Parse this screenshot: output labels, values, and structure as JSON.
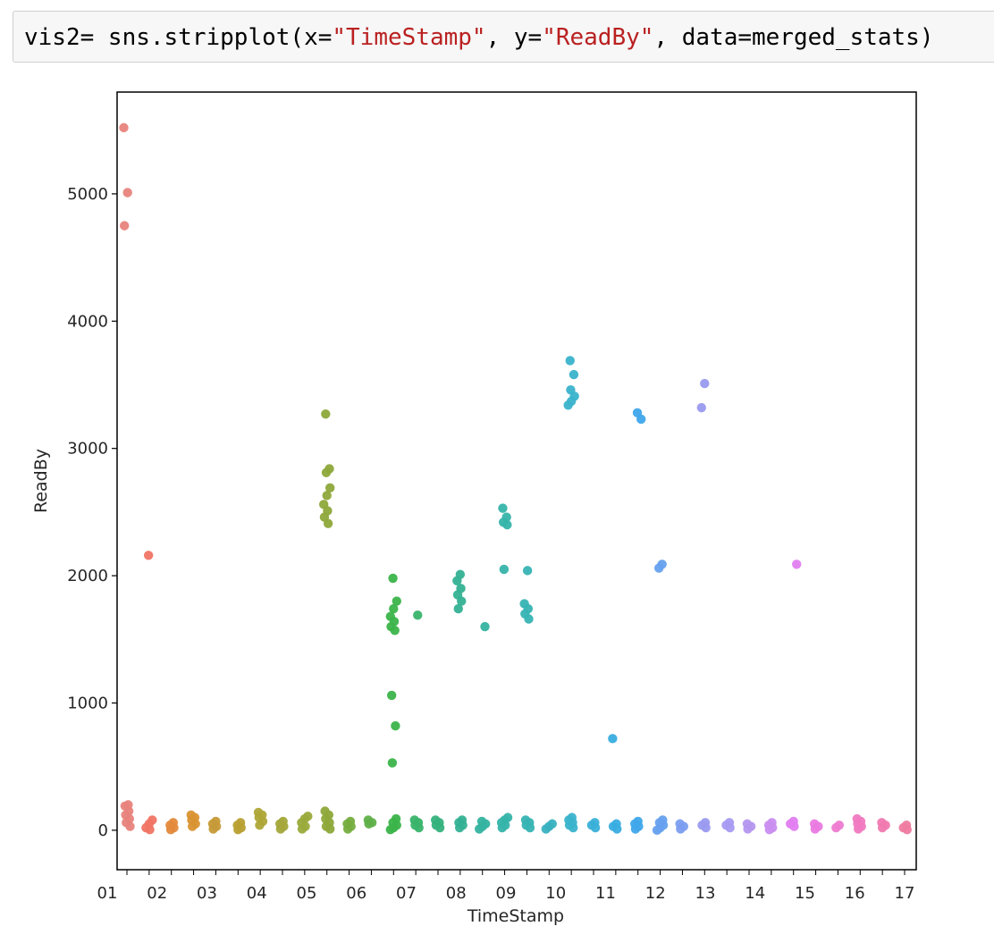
{
  "code_cell": {
    "parts": [
      {
        "text": "vis2= sns.stripplot(x=",
        "kind": "plain"
      },
      {
        "text": "\"TimeStamp\"",
        "kind": "string"
      },
      {
        "text": ", y=",
        "kind": "plain"
      },
      {
        "text": "\"ReadBy\"",
        "kind": "string"
      },
      {
        "text": ", data=merged_stats)",
        "kind": "plain"
      }
    ]
  },
  "chart_data": {
    "type": "scatter",
    "xlabel": "TimeStamp",
    "ylabel": "ReadBy",
    "ylim": [
      -310,
      5800
    ],
    "yticks": [
      0,
      1000,
      2000,
      3000,
      4000,
      5000
    ],
    "xtick_labels": [
      "01",
      "02",
      "03",
      "04",
      "05",
      "06",
      "07",
      "08",
      "09",
      "10",
      "11",
      "12",
      "13",
      "14",
      "15",
      "16",
      "17"
    ],
    "grid": false,
    "legend": "none",
    "series": [
      {
        "color": "#e8837c",
        "points": [
          5520,
          5010,
          4750,
          200,
          190,
          150,
          120,
          90,
          60,
          30
        ]
      },
      {
        "color": "#f07464",
        "points": [
          2160,
          80,
          50,
          20,
          5
        ]
      },
      {
        "color": "#e38a3c",
        "points": [
          60,
          40,
          20,
          5
        ]
      },
      {
        "color": "#d99332",
        "points": [
          120,
          100,
          80,
          50,
          30
        ]
      },
      {
        "color": "#c69a38",
        "points": [
          70,
          50,
          30,
          10
        ]
      },
      {
        "color": "#b8a033",
        "points": [
          60,
          40,
          20,
          5
        ]
      },
      {
        "color": "#aea637",
        "points": [
          140,
          120,
          100,
          70,
          40
        ]
      },
      {
        "color": "#a4a73b",
        "points": [
          70,
          50,
          30,
          10
        ]
      },
      {
        "color": "#9aab3c",
        "points": [
          110,
          90,
          60,
          30,
          10
        ]
      },
      {
        "color": "#8ea83a",
        "points": [
          3270,
          2840,
          2810,
          2690,
          2630,
          2560,
          2510,
          2460,
          2410,
          150,
          120,
          90,
          60,
          30,
          10
        ]
      },
      {
        "color": "#76ad3f",
        "points": [
          70,
          50,
          30,
          10
        ]
      },
      {
        "color": "#5fb048",
        "points": [
          80,
          60,
          50
        ]
      },
      {
        "color": "#3bb44a",
        "points": [
          1980,
          1800,
          1740,
          1680,
          1640,
          1600,
          1570,
          1060,
          820,
          530,
          90,
          60,
          40,
          20,
          5
        ]
      },
      {
        "color": "#39b46a",
        "points": [
          1690,
          80,
          60,
          40,
          20
        ]
      },
      {
        "color": "#35b27d",
        "points": [
          80,
          60,
          40,
          20
        ]
      },
      {
        "color": "#34b193",
        "points": [
          2010,
          1960,
          1900,
          1850,
          1800,
          1740,
          80,
          60,
          40,
          20
        ]
      },
      {
        "color": "#34b3a0",
        "points": [
          1600,
          70,
          50,
          30,
          10
        ]
      },
      {
        "color": "#36b4aa",
        "points": [
          2530,
          2460,
          2420,
          2400,
          2050,
          100,
          80,
          60,
          40,
          20
        ]
      },
      {
        "color": "#37b3b3",
        "points": [
          2040,
          1780,
          1740,
          1700,
          1660,
          80,
          60,
          40,
          20
        ]
      },
      {
        "color": "#39b1c0",
        "points": [
          50,
          30,
          10
        ]
      },
      {
        "color": "#3ab3cc",
        "points": [
          3690,
          3580,
          3460,
          3410,
          3370,
          3340,
          100,
          80,
          60,
          40,
          20
        ]
      },
      {
        "color": "#3ab0d8",
        "points": [
          60,
          40,
          20
        ]
      },
      {
        "color": "#39ade0",
        "points": [
          720,
          50,
          30,
          10
        ]
      },
      {
        "color": "#3fa6ea",
        "points": [
          3280,
          3230,
          70,
          50,
          30,
          10
        ]
      },
      {
        "color": "#66a0ee",
        "points": [
          2090,
          2060,
          80,
          60,
          40,
          20,
          0
        ]
      },
      {
        "color": "#7c9ef0",
        "points": [
          50,
          30,
          10
        ]
      },
      {
        "color": "#9a9af0",
        "points": [
          3510,
          3320,
          60,
          40,
          20
        ]
      },
      {
        "color": "#a69bf2",
        "points": [
          60,
          40,
          20
        ]
      },
      {
        "color": "#b597ee",
        "points": [
          50,
          30,
          10
        ]
      },
      {
        "color": "#c98ef0",
        "points": [
          60,
          40,
          20,
          5
        ]
      },
      {
        "color": "#e17ef0",
        "points": [
          2090,
          70,
          50,
          30
        ]
      },
      {
        "color": "#ea7ae0",
        "points": [
          50,
          30,
          10
        ]
      },
      {
        "color": "#ee7bd0",
        "points": [
          40,
          20
        ]
      },
      {
        "color": "#f07ac0",
        "points": [
          90,
          70,
          50,
          30,
          10
        ]
      },
      {
        "color": "#f07ab0",
        "points": [
          60,
          40,
          20
        ]
      },
      {
        "color": "#ef7ca0",
        "points": [
          40,
          20,
          5
        ]
      }
    ]
  }
}
